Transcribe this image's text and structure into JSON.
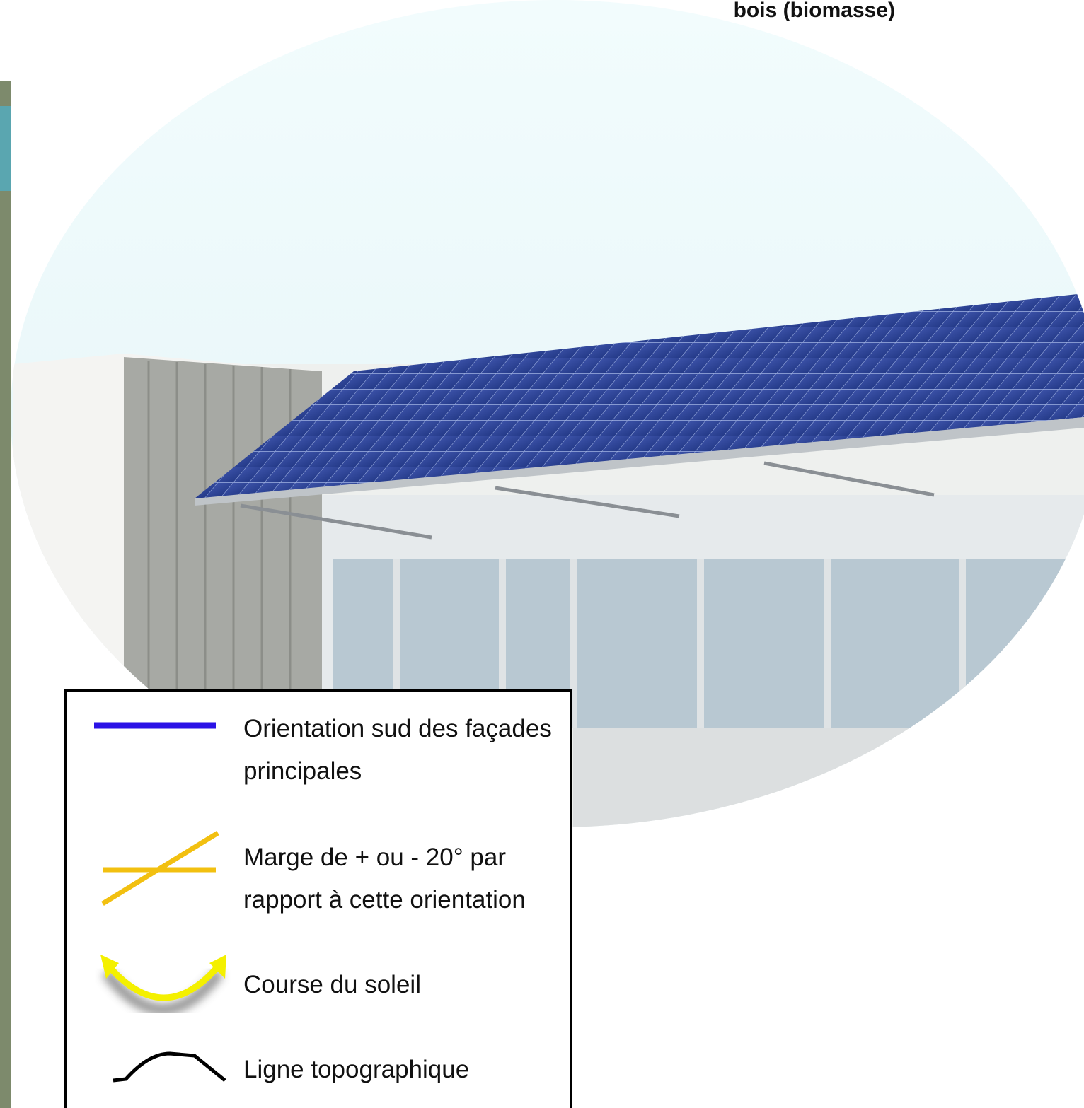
{
  "header": {
    "title": "bois (biomasse)"
  },
  "legend": {
    "items": [
      {
        "lines": [
          "Orientation sud des façades",
          "principales"
        ]
      },
      {
        "lines": [
          "Marge de + ou - 20° par",
          "rapport à cette orientation"
        ]
      },
      {
        "lines": [
          "Course du soleil"
        ]
      },
      {
        "lines": [
          "Ligne topographique"
        ]
      }
    ]
  }
}
